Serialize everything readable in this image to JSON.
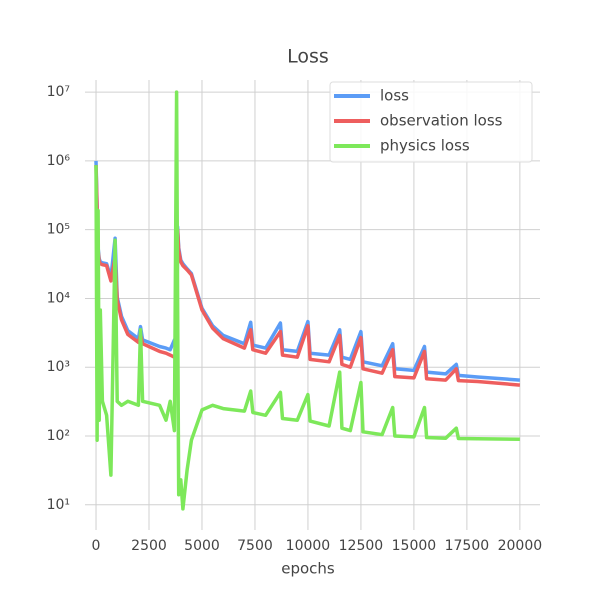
{
  "chart_data": {
    "type": "line",
    "title": "Loss",
    "x_label": "epochs",
    "x": [
      0,
      50,
      100,
      150,
      200,
      300,
      500,
      700,
      900,
      1000,
      1200,
      1500,
      2000,
      2100,
      2200,
      3000,
      3300,
      3500,
      3700,
      3800,
      3850,
      3900,
      4000,
      4100,
      4300,
      4500,
      5000,
      5500,
      6000,
      7000,
      7300,
      7400,
      8000,
      8700,
      8800,
      9500,
      10000,
      10100,
      11000,
      11500,
      11600,
      12000,
      12500,
      12600,
      13500,
      14000,
      14100,
      15000,
      15500,
      15600,
      16500,
      17000,
      17100,
      18000,
      20000
    ],
    "series": [
      {
        "name": "loss",
        "color": "#5b9cf6",
        "values": [
          1000000,
          230000,
          55000,
          38000,
          34000,
          33000,
          32000,
          20000,
          75000,
          10500,
          5500,
          3400,
          2600,
          3900,
          2500,
          2000,
          1900,
          1800,
          2500,
          1500,
          110000,
          55000,
          36000,
          32000,
          27000,
          23000,
          7200,
          4000,
          2900,
          2200,
          4500,
          2100,
          1900,
          4400,
          1800,
          1700,
          4600,
          1600,
          1500,
          3500,
          1400,
          1300,
          3300,
          1200,
          1050,
          2200,
          950,
          900,
          2000,
          850,
          800,
          1100,
          760,
          720,
          650
        ]
      },
      {
        "name": "observation loss",
        "color": "#ee5e5e",
        "values": [
          870000,
          200000,
          50000,
          35000,
          32000,
          31000,
          30000,
          18000,
          40000,
          9500,
          4900,
          3000,
          2300,
          3000,
          2200,
          1700,
          1600,
          1500,
          1400,
          1300,
          100000,
          50000,
          34000,
          30000,
          26000,
          22000,
          6800,
          3700,
          2600,
          1900,
          3500,
          1800,
          1600,
          3300,
          1500,
          1400,
          4000,
          1300,
          1200,
          2900,
          1100,
          1000,
          2700,
          950,
          820,
          1800,
          730,
          700,
          1700,
          680,
          650,
          950,
          640,
          620,
          550
        ]
      },
      {
        "name": "physics loss",
        "color": "#7de85a",
        "values": [
          870000,
          87,
          190000,
          170,
          6800,
          320,
          200,
          27,
          70000,
          320,
          280,
          320,
          280,
          3500,
          320,
          280,
          170,
          320,
          120,
          10000000,
          9500,
          14,
          23,
          8.7,
          32,
          87,
          240,
          280,
          250,
          230,
          450,
          220,
          200,
          430,
          180,
          170,
          400,
          165,
          140,
          850,
          130,
          120,
          600,
          115,
          105,
          260,
          100,
          97,
          260,
          95,
          93,
          130,
          92,
          91,
          90
        ]
      }
    ],
    "xlim": [
      -520,
      20950
    ],
    "xticks": [
      0,
      2500,
      5000,
      7500,
      10000,
      12500,
      15000,
      17500,
      20000
    ],
    "ylim": [
      4.3,
      15000000
    ],
    "log_y": true,
    "yticks": [
      {
        "value": 10,
        "label": "10¹"
      },
      {
        "value": 100,
        "label": "10²"
      },
      {
        "value": 1000,
        "label": "10³"
      },
      {
        "value": 10000,
        "label": "10⁴"
      },
      {
        "value": 100000,
        "label": "10⁵"
      },
      {
        "value": 1000000,
        "label": "10⁶"
      },
      {
        "value": 10000000,
        "label": "10⁷"
      }
    ],
    "grid": true,
    "legend": "upper right"
  }
}
